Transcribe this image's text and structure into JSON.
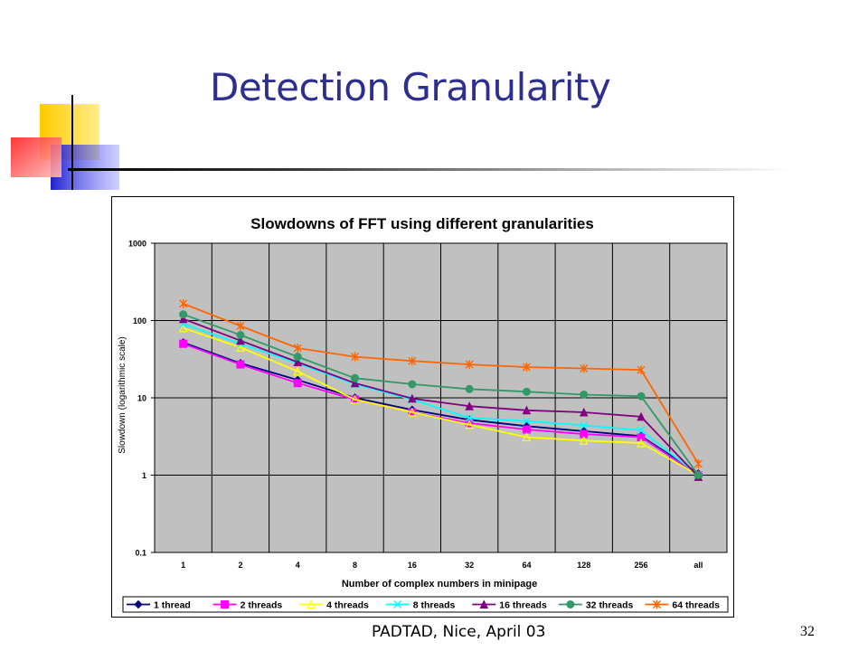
{
  "slide": {
    "title": "Detection Granularity",
    "footer": "PADTAD, Nice, April 03",
    "page_number": "32"
  },
  "colors": {
    "title": "#2e2e8f",
    "plot_bg": "#c0c0c0",
    "deco_yellow": "#ffd200",
    "deco_blue": "#2b2bd6",
    "deco_red": "#ff3030"
  },
  "chart_data": {
    "type": "line",
    "title": "Slowdowns of FFT using different granularities",
    "xlabel": "Number of complex numbers in minipage",
    "ylabel": "Slowdown (logarithmic scale)",
    "y_scale": "log",
    "ylim": [
      0.1,
      1000
    ],
    "y_ticks": [
      "0.1",
      "1",
      "10",
      "100",
      "1000"
    ],
    "categories": [
      "1",
      "2",
      "4",
      "8",
      "16",
      "32",
      "64",
      "128",
      "256",
      "all"
    ],
    "grid": true,
    "legend_position": "bottom",
    "series": [
      {
        "name": "1 thread",
        "color": "#000080",
        "marker": "diamond",
        "values": [
          52,
          28,
          17,
          10,
          7,
          5.2,
          4.3,
          3.7,
          3.2,
          1.05
        ]
      },
      {
        "name": "2 threads",
        "color": "#ff00ff",
        "marker": "square",
        "values": [
          50,
          27,
          15.5,
          9.5,
          6.5,
          4.7,
          3.9,
          3.4,
          3.1,
          1.0
        ]
      },
      {
        "name": "4 threads",
        "color": "#ffff00",
        "marker": "triangle",
        "values": [
          80,
          45,
          22,
          9.5,
          6.5,
          4.5,
          3.1,
          2.8,
          2.6,
          1.0
        ]
      },
      {
        "name": "8 threads",
        "color": "#00ffff",
        "marker": "x",
        "values": [
          90,
          50,
          28,
          15,
          9.5,
          5.5,
          5.0,
          4.4,
          3.8,
          1.0
        ]
      },
      {
        "name": "16 threads",
        "color": "#800080",
        "marker": "filled-triangle",
        "values": [
          105,
          55,
          29,
          15.5,
          9.8,
          7.8,
          6.9,
          6.5,
          5.7,
          0.95
        ]
      },
      {
        "name": "32 threads",
        "color": "#339966",
        "marker": "circle",
        "values": [
          120,
          65,
          34,
          18,
          15,
          13,
          12,
          11,
          10.5,
          1.0
        ]
      },
      {
        "name": "64 threads",
        "color": "#ff6600",
        "marker": "star",
        "values": [
          165,
          85,
          44,
          34,
          30,
          27,
          25,
          24,
          23,
          1.4
        ]
      }
    ]
  }
}
